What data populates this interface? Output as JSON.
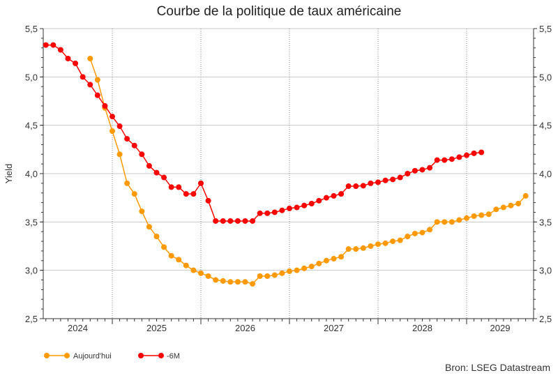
{
  "chart_data": {
    "type": "line",
    "title": "Courbe de la politique de taux américaine",
    "ylabel": "Yield",
    "xlabel": "",
    "source": "Bron: LSEG Datastream",
    "ylim": [
      2.5,
      5.5
    ],
    "yticks": [
      "2,5",
      "3,0",
      "3,5",
      "4,0",
      "4,5",
      "5,0",
      "5,5"
    ],
    "xlim": [
      "2024-04",
      "2029-10"
    ],
    "xtick_labels": [
      "2024",
      "2025",
      "2026",
      "2027",
      "2028",
      "2029"
    ],
    "grid": true,
    "legend_position": "bottom-left",
    "x_frequency": "monthly",
    "series": [
      {
        "name": "Aujourd'hui",
        "color": "#FF9900",
        "start": "2024-10",
        "values": [
          5.19,
          4.97,
          4.68,
          4.44,
          4.2,
          3.9,
          3.79,
          3.61,
          3.45,
          3.35,
          3.24,
          3.15,
          3.11,
          3.05,
          3.0,
          2.97,
          2.94,
          2.9,
          2.89,
          2.88,
          2.88,
          2.88,
          2.86,
          2.94,
          2.94,
          2.95,
          2.97,
          2.99,
          3.0,
          3.02,
          3.04,
          3.07,
          3.1,
          3.12,
          3.14,
          3.22,
          3.22,
          3.23,
          3.25,
          3.27,
          3.28,
          3.3,
          3.31,
          3.35,
          3.38,
          3.39,
          3.42,
          3.5,
          3.5,
          3.5,
          3.52,
          3.54,
          3.56,
          3.57,
          3.58,
          3.63,
          3.65,
          3.67,
          3.69,
          3.77
        ]
      },
      {
        "name": "-6M",
        "color": "#FF0000",
        "start": "2024-04",
        "values": [
          5.33,
          5.33,
          5.28,
          5.19,
          5.14,
          5.0,
          4.92,
          4.81,
          4.7,
          4.59,
          4.49,
          4.36,
          4.29,
          4.2,
          4.08,
          4.01,
          3.96,
          3.86,
          3.86,
          3.79,
          3.79,
          3.9,
          3.72,
          3.51,
          3.51,
          3.51,
          3.51,
          3.51,
          3.51,
          3.59,
          3.59,
          3.6,
          3.62,
          3.64,
          3.65,
          3.67,
          3.69,
          3.72,
          3.75,
          3.77,
          3.79,
          3.87,
          3.87,
          3.875,
          3.9,
          3.91,
          3.93,
          3.94,
          3.96,
          4.0,
          4.03,
          4.04,
          4.06,
          4.14,
          4.14,
          4.15,
          4.17,
          4.19,
          4.21,
          4.22
        ]
      }
    ]
  }
}
